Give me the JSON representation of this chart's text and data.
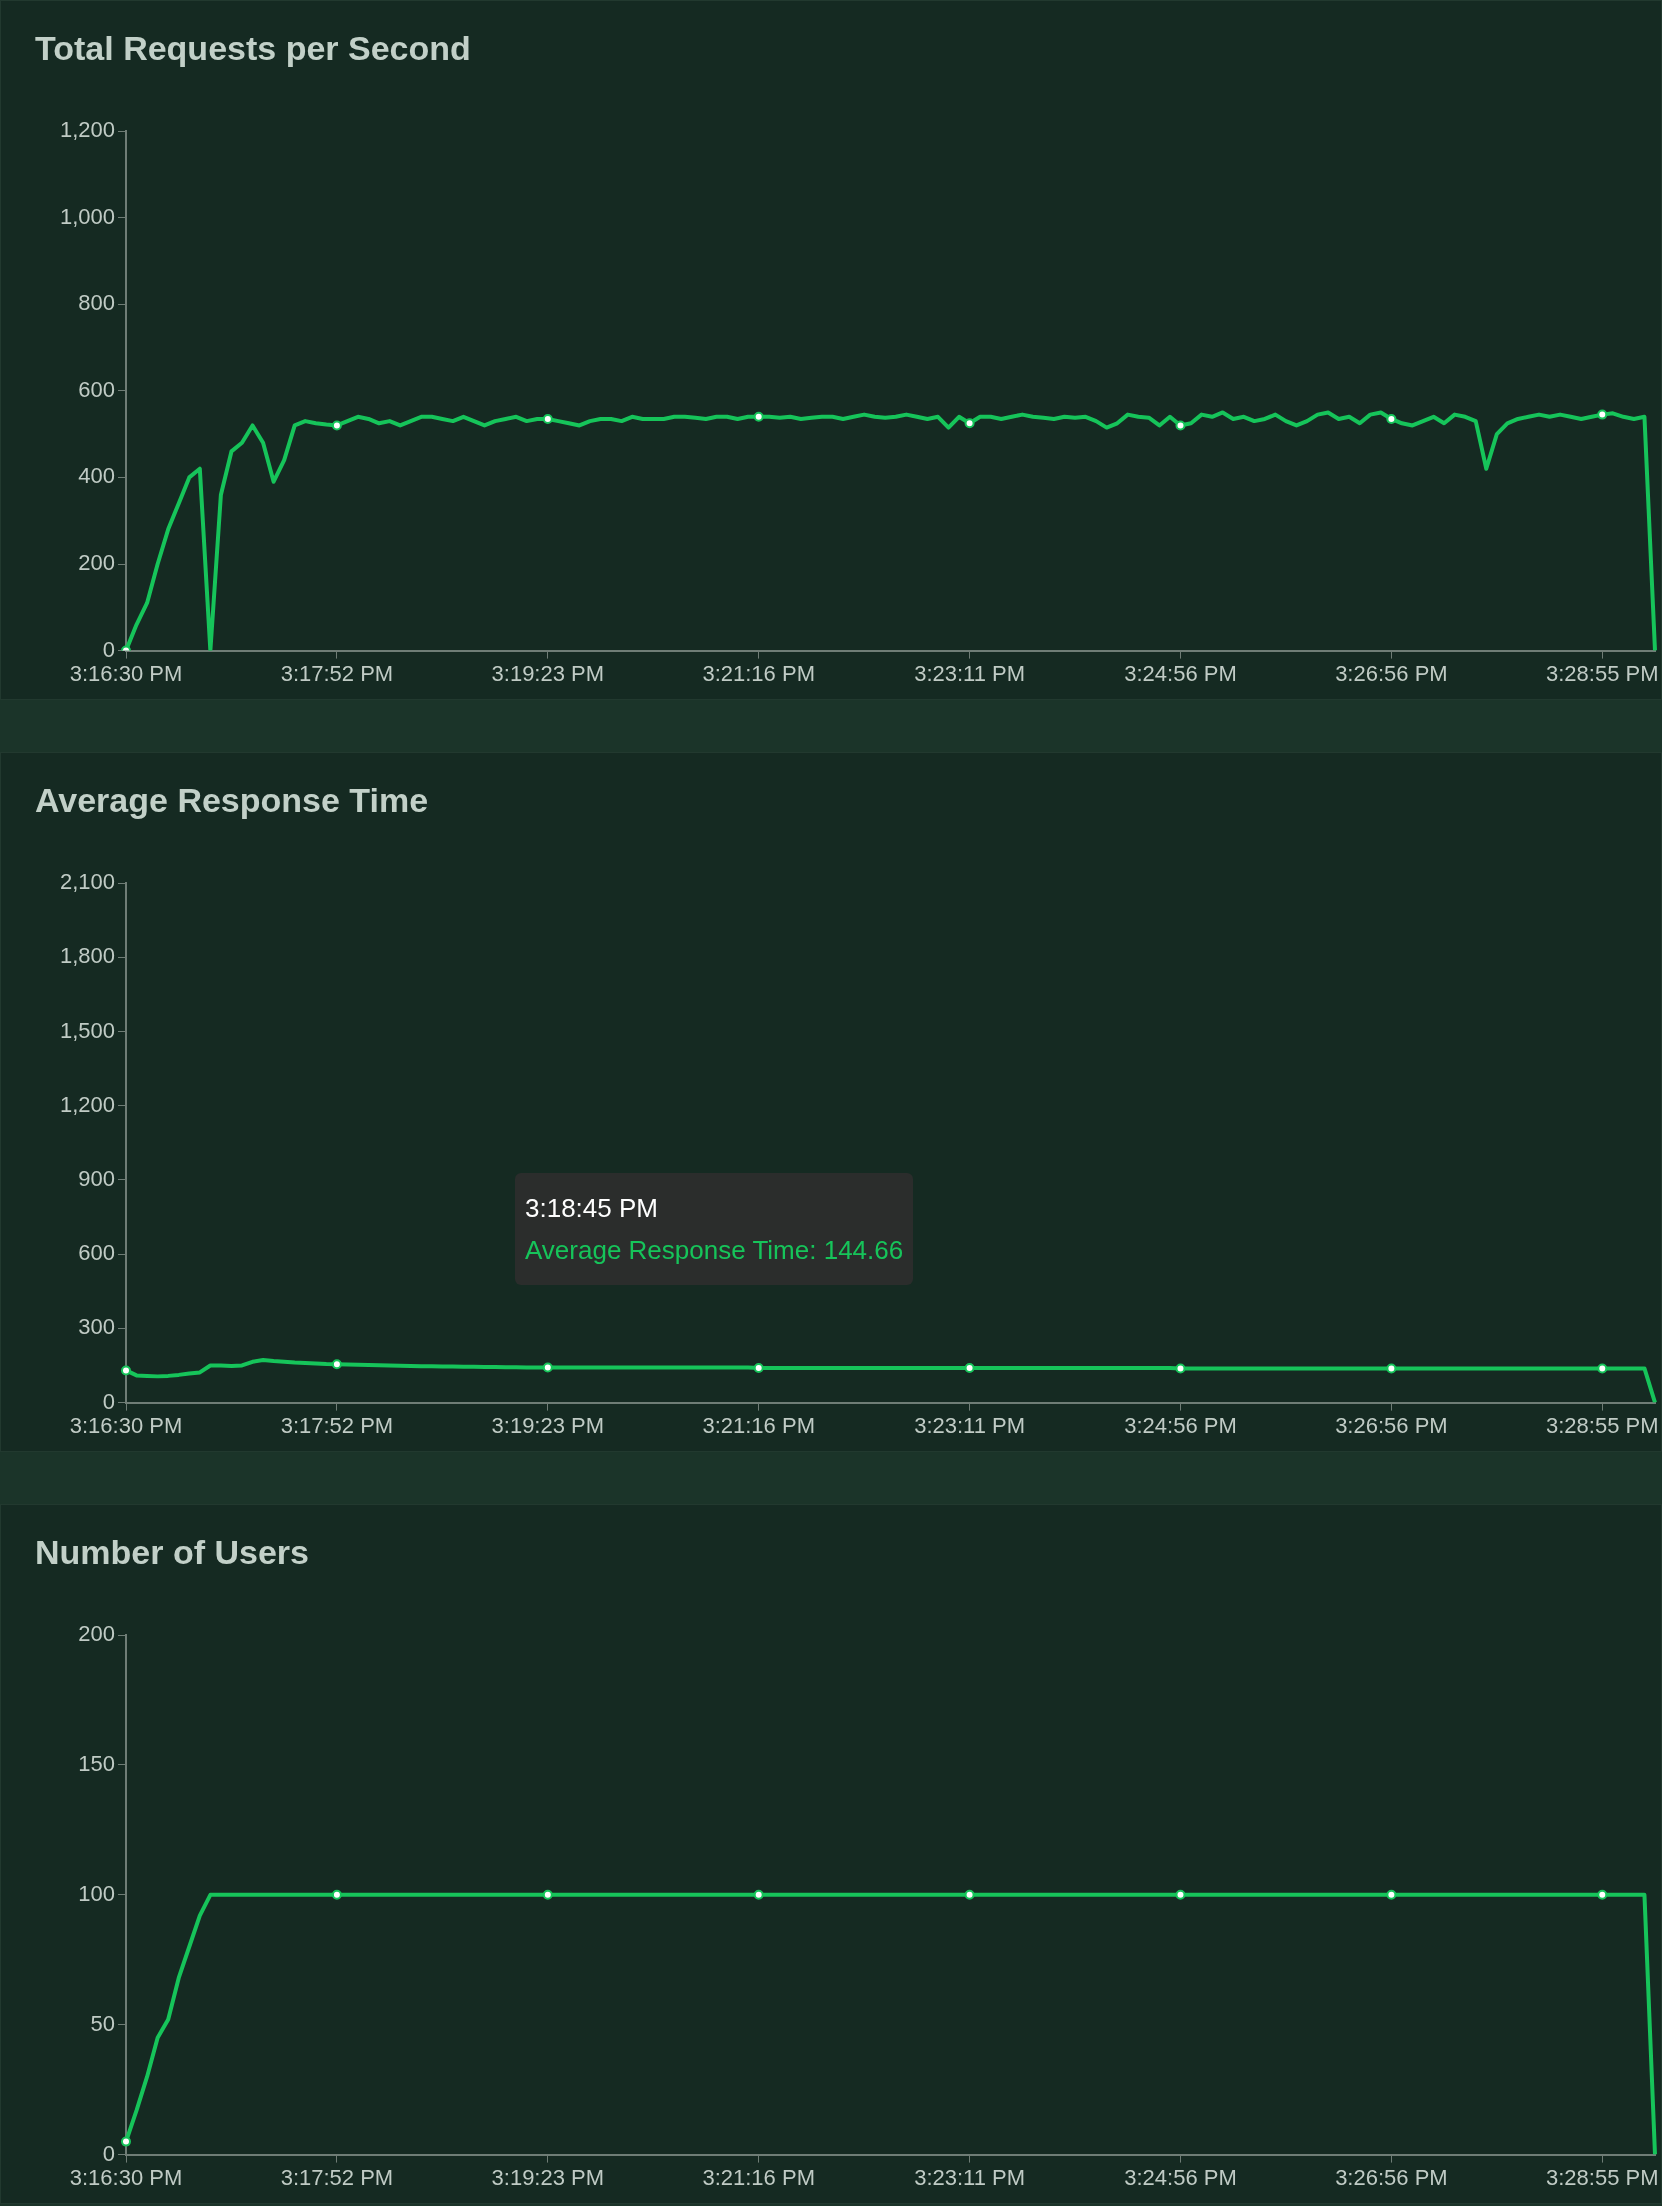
{
  "chart_data": [
    {
      "type": "line",
      "title": "Total Requests per Second",
      "grid": false,
      "line_style": "solid",
      "categories": [
        "3:16:30 PM",
        null,
        null,
        null,
        null,
        null,
        null,
        null,
        null,
        null,
        null,
        null,
        null,
        null,
        null,
        null,
        null,
        null,
        null,
        null,
        "3:17:52 PM",
        null,
        null,
        null,
        null,
        null,
        null,
        null,
        null,
        null,
        null,
        null,
        null,
        null,
        null,
        null,
        null,
        null,
        null,
        null,
        "3:19:23 PM",
        null,
        null,
        null,
        null,
        null,
        null,
        null,
        null,
        null,
        null,
        null,
        null,
        null,
        null,
        null,
        null,
        null,
        null,
        null,
        "3:21:16 PM",
        null,
        null,
        null,
        null,
        null,
        null,
        null,
        null,
        null,
        null,
        null,
        null,
        null,
        null,
        null,
        null,
        null,
        null,
        null,
        "3:23:11 PM",
        null,
        null,
        null,
        null,
        null,
        null,
        null,
        null,
        null,
        null,
        null,
        null,
        null,
        null,
        null,
        null,
        null,
        null,
        null,
        "3:24:56 PM",
        null,
        null,
        null,
        null,
        null,
        null,
        null,
        null,
        null,
        null,
        null,
        null,
        null,
        null,
        null,
        null,
        null,
        null,
        null,
        "3:26:56 PM",
        null,
        null,
        null,
        null,
        null,
        null,
        null,
        null,
        null,
        null,
        null,
        null,
        null,
        null,
        null,
        null,
        null,
        null,
        null,
        "3:28:55 PM",
        null,
        null,
        null,
        null,
        null
      ],
      "ylim": [
        0,
        1200
      ],
      "yticks": [
        0,
        200,
        400,
        600,
        800,
        {
          "value": 1000,
          "label": "1,000"
        },
        {
          "value": 1200,
          "label": "1,200"
        }
      ],
      "series": [
        {
          "color": "#16c45a",
          "values": [
            0,
            60,
            110,
            200,
            280,
            340,
            400,
            420,
            0,
            360,
            460,
            480,
            520,
            480,
            390,
            440,
            520,
            530,
            525,
            522,
            520,
            530,
            540,
            535,
            525,
            530,
            520,
            530,
            540,
            540,
            535,
            530,
            540,
            530,
            520,
            530,
            535,
            540,
            530,
            535,
            535,
            530,
            525,
            520,
            530,
            535,
            535,
            530,
            540,
            535,
            535,
            535,
            540,
            540,
            538,
            535,
            540,
            540,
            535,
            540,
            540,
            540,
            538,
            540,
            535,
            538,
            540,
            540,
            535,
            540,
            545,
            540,
            538,
            540,
            545,
            540,
            535,
            540,
            515,
            540,
            525,
            540,
            540,
            535,
            540,
            545,
            540,
            538,
            535,
            540,
            538,
            540,
            530,
            515,
            525,
            545,
            540,
            538,
            520,
            540,
            520,
            525,
            545,
            540,
            550,
            535,
            540,
            530,
            535,
            545,
            530,
            520,
            530,
            545,
            550,
            535,
            540,
            525,
            545,
            550,
            535,
            525,
            520,
            530,
            540,
            525,
            545,
            540,
            530,
            420,
            500,
            525,
            535,
            540,
            545,
            540,
            545,
            540,
            535,
            540,
            545,
            548,
            540,
            535,
            540,
            0
          ]
        }
      ]
    },
    {
      "type": "line",
      "title": "Average Response Time",
      "grid": false,
      "line_style": "solid",
      "categories": [
        "3:16:30 PM",
        null,
        null,
        null,
        null,
        null,
        null,
        null,
        null,
        null,
        null,
        null,
        null,
        null,
        null,
        null,
        null,
        null,
        null,
        null,
        "3:17:52 PM",
        null,
        null,
        null,
        null,
        null,
        null,
        null,
        null,
        null,
        null,
        null,
        null,
        null,
        null,
        null,
        null,
        null,
        null,
        null,
        "3:19:23 PM",
        null,
        null,
        null,
        null,
        null,
        null,
        null,
        null,
        null,
        null,
        null,
        null,
        null,
        null,
        null,
        null,
        null,
        null,
        null,
        "3:21:16 PM",
        null,
        null,
        null,
        null,
        null,
        null,
        null,
        null,
        null,
        null,
        null,
        null,
        null,
        null,
        null,
        null,
        null,
        null,
        null,
        "3:23:11 PM",
        null,
        null,
        null,
        null,
        null,
        null,
        null,
        null,
        null,
        null,
        null,
        null,
        null,
        null,
        null,
        null,
        null,
        null,
        null,
        "3:24:56 PM",
        null,
        null,
        null,
        null,
        null,
        null,
        null,
        null,
        null,
        null,
        null,
        null,
        null,
        null,
        null,
        null,
        null,
        null,
        null,
        "3:26:56 PM",
        null,
        null,
        null,
        null,
        null,
        null,
        null,
        null,
        null,
        null,
        null,
        null,
        null,
        null,
        null,
        null,
        null,
        null,
        null,
        "3:28:55 PM",
        null,
        null,
        null,
        null,
        null
      ],
      "ylim": [
        0,
        2100
      ],
      "yticks": [
        0,
        300,
        600,
        900,
        {
          "value": 1200,
          "label": "1,200"
        },
        {
          "value": 1500,
          "label": "1,500"
        },
        {
          "value": 1800,
          "label": "1,800"
        },
        {
          "value": 2100,
          "label": "2,100"
        }
      ],
      "annotations": [
        "3:18:45 PM",
        "Average Response Time: 144.66"
      ],
      "series": [
        {
          "color": "#16c45a",
          "values": [
            130,
            110,
            108,
            106,
            108,
            112,
            118,
            122,
            150,
            150,
            148,
            150,
            165,
            172,
            168,
            165,
            162,
            160,
            158,
            156,
            155,
            154,
            153,
            152,
            151,
            150,
            149,
            148,
            147,
            147,
            146,
            146,
            145,
            144.66,
            144,
            144,
            143,
            143,
            142,
            142,
            142,
            142,
            142,
            142,
            142,
            142,
            142,
            142,
            142,
            142,
            142,
            142,
            142,
            142,
            142,
            142,
            142,
            142,
            142,
            142,
            140,
            140,
            140,
            140,
            140,
            140,
            140,
            140,
            140,
            140,
            140,
            140,
            140,
            140,
            140,
            140,
            140,
            140,
            140,
            140,
            140,
            140,
            140,
            140,
            140,
            140,
            140,
            140,
            140,
            140,
            140,
            140,
            140,
            140,
            140,
            140,
            140,
            140,
            140,
            140,
            138,
            138,
            138,
            138,
            138,
            138,
            138,
            138,
            138,
            138,
            138,
            138,
            138,
            138,
            138,
            138,
            138,
            138,
            138,
            138,
            138,
            138,
            138,
            138,
            138,
            138,
            138,
            138,
            138,
            138,
            138,
            138,
            138,
            138,
            138,
            138,
            138,
            138,
            138,
            138,
            138,
            138,
            138,
            138,
            138,
            0
          ]
        }
      ]
    },
    {
      "type": "line",
      "title": "Number of Users",
      "grid": false,
      "line_style": "solid",
      "categories": [
        "3:16:30 PM",
        null,
        null,
        null,
        null,
        null,
        null,
        null,
        null,
        null,
        null,
        null,
        null,
        null,
        null,
        null,
        null,
        null,
        null,
        null,
        "3:17:52 PM",
        null,
        null,
        null,
        null,
        null,
        null,
        null,
        null,
        null,
        null,
        null,
        null,
        null,
        null,
        null,
        null,
        null,
        null,
        null,
        "3:19:23 PM",
        null,
        null,
        null,
        null,
        null,
        null,
        null,
        null,
        null,
        null,
        null,
        null,
        null,
        null,
        null,
        null,
        null,
        null,
        null,
        "3:21:16 PM",
        null,
        null,
        null,
        null,
        null,
        null,
        null,
        null,
        null,
        null,
        null,
        null,
        null,
        null,
        null,
        null,
        null,
        null,
        null,
        "3:23:11 PM",
        null,
        null,
        null,
        null,
        null,
        null,
        null,
        null,
        null,
        null,
        null,
        null,
        null,
        null,
        null,
        null,
        null,
        null,
        null,
        "3:24:56 PM",
        null,
        null,
        null,
        null,
        null,
        null,
        null,
        null,
        null,
        null,
        null,
        null,
        null,
        null,
        null,
        null,
        null,
        null,
        null,
        "3:26:56 PM",
        null,
        null,
        null,
        null,
        null,
        null,
        null,
        null,
        null,
        null,
        null,
        null,
        null,
        null,
        null,
        null,
        null,
        null,
        null,
        "3:28:55 PM",
        null,
        null,
        null,
        null,
        null
      ],
      "ylim": [
        0,
        200
      ],
      "yticks": [
        0,
        50,
        100,
        150,
        200
      ],
      "series": [
        {
          "color": "#16c45a",
          "values": [
            5,
            17,
            30,
            45,
            52,
            68,
            80,
            92,
            100,
            100,
            100,
            100,
            100,
            100,
            100,
            100,
            100,
            100,
            100,
            100,
            100,
            100,
            100,
            100,
            100,
            100,
            100,
            100,
            100,
            100,
            100,
            100,
            100,
            100,
            100,
            100,
            100,
            100,
            100,
            100,
            100,
            100,
            100,
            100,
            100,
            100,
            100,
            100,
            100,
            100,
            100,
            100,
            100,
            100,
            100,
            100,
            100,
            100,
            100,
            100,
            100,
            100,
            100,
            100,
            100,
            100,
            100,
            100,
            100,
            100,
            100,
            100,
            100,
            100,
            100,
            100,
            100,
            100,
            100,
            100,
            100,
            100,
            100,
            100,
            100,
            100,
            100,
            100,
            100,
            100,
            100,
            100,
            100,
            100,
            100,
            100,
            100,
            100,
            100,
            100,
            100,
            100,
            100,
            100,
            100,
            100,
            100,
            100,
            100,
            100,
            100,
            100,
            100,
            100,
            100,
            100,
            100,
            100,
            100,
            100,
            100,
            100,
            100,
            100,
            100,
            100,
            100,
            100,
            100,
            100,
            100,
            100,
            100,
            100,
            100,
            100,
            100,
            100,
            100,
            100,
            100,
            100,
            100,
            100,
            100,
            0
          ]
        }
      ]
    }
  ]
}
